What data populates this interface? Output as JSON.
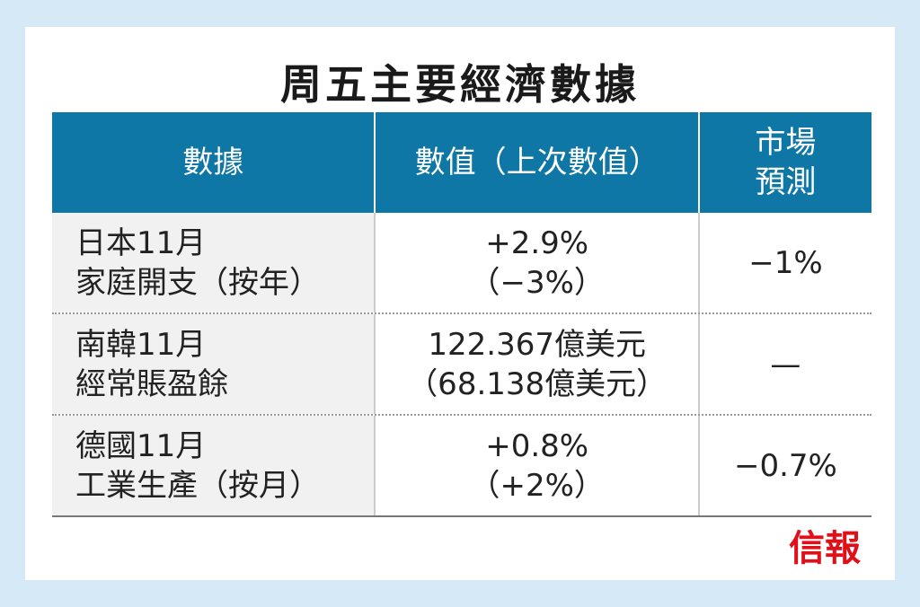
{
  "title": "周五主要經濟數據",
  "table": {
    "header": [
      [
        "數據"
      ],
      [
        "數值（上次數值）"
      ],
      [
        "市場",
        "預測"
      ]
    ],
    "rows": [
      [
        [
          "日本11月",
          "家庭開支（按年）"
        ],
        [
          "+2.9%",
          "（−3%）"
        ],
        [
          "−1%"
        ]
      ],
      [
        [
          "南韓11月",
          "經常賬盈餘"
        ],
        [
          "122.367億美元",
          "（68.138億美元）"
        ],
        [
          "—"
        ]
      ],
      [
        [
          "德國11月",
          "工業生產（按月）"
        ],
        [
          "+0.8%",
          "（+2%）"
        ],
        [
          "−0.7%"
        ]
      ]
    ]
  },
  "logo": "信報"
}
